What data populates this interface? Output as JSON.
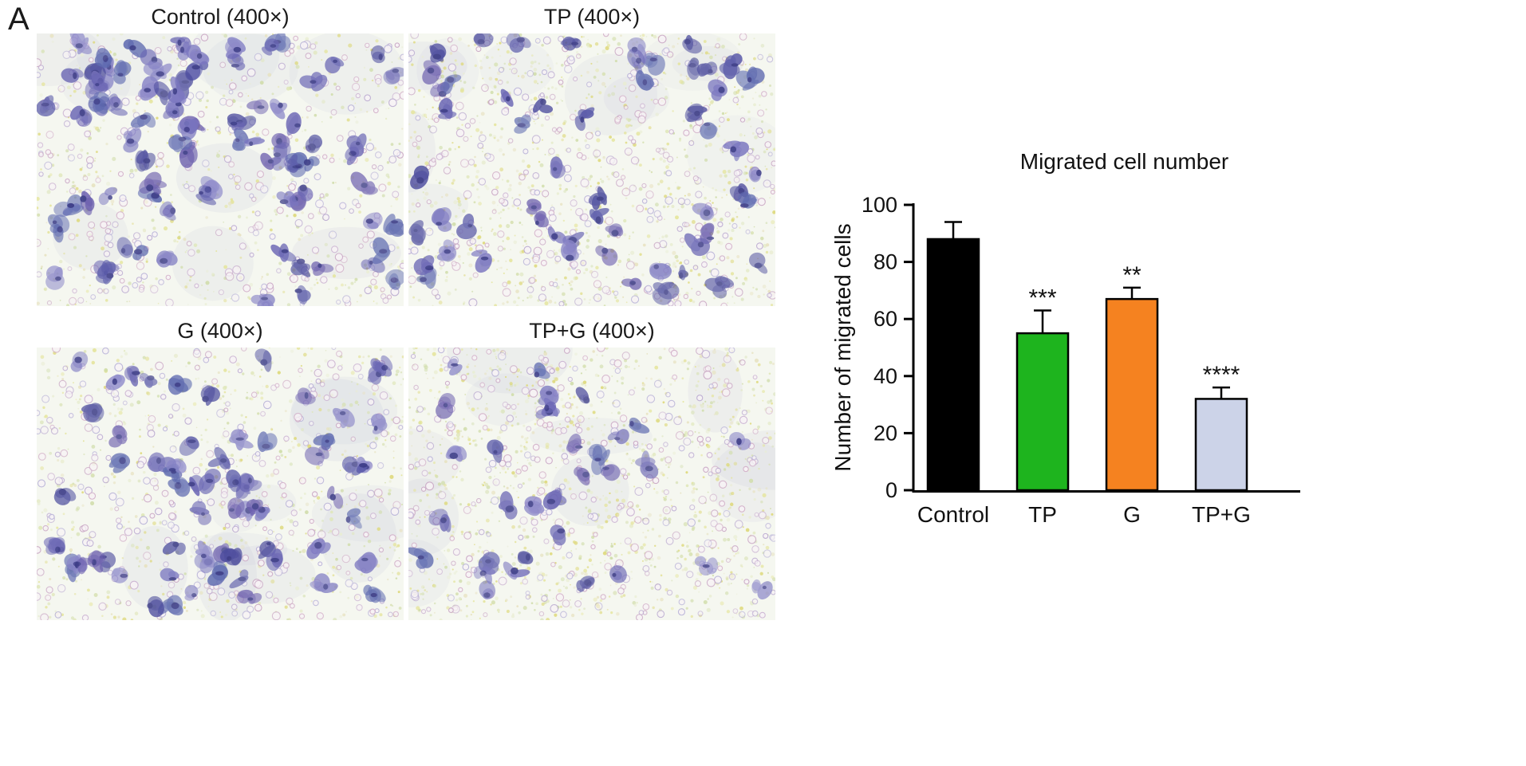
{
  "panel_label": "A",
  "micrographs": [
    {
      "id": "control",
      "label": "Control (400×)"
    },
    {
      "id": "tp",
      "label": "TP (400×)"
    },
    {
      "id": "g",
      "label": "G (400×)"
    },
    {
      "id": "tpg",
      "label": "TP+G (400×)"
    }
  ],
  "chart_data": {
    "type": "bar",
    "title": "Migrated cell number",
    "ylabel": "Number of migrated cells",
    "xlabel": "",
    "categories": [
      "Control",
      "TP",
      "G",
      "TP+G"
    ],
    "values": [
      88,
      55,
      67,
      32
    ],
    "errors": [
      6,
      8,
      4,
      4
    ],
    "significance": [
      "",
      "***",
      "**",
      "****"
    ],
    "bar_colors": [
      "#000000",
      "#1eb41e",
      "#f58220",
      "#ccd3e8"
    ],
    "bar_outline_color": "#000000",
    "axis_color": "#000000",
    "ylim": [
      0,
      100
    ],
    "yticks": [
      0,
      20,
      40,
      60,
      80,
      100
    ],
    "grid": false,
    "legend": "none"
  }
}
